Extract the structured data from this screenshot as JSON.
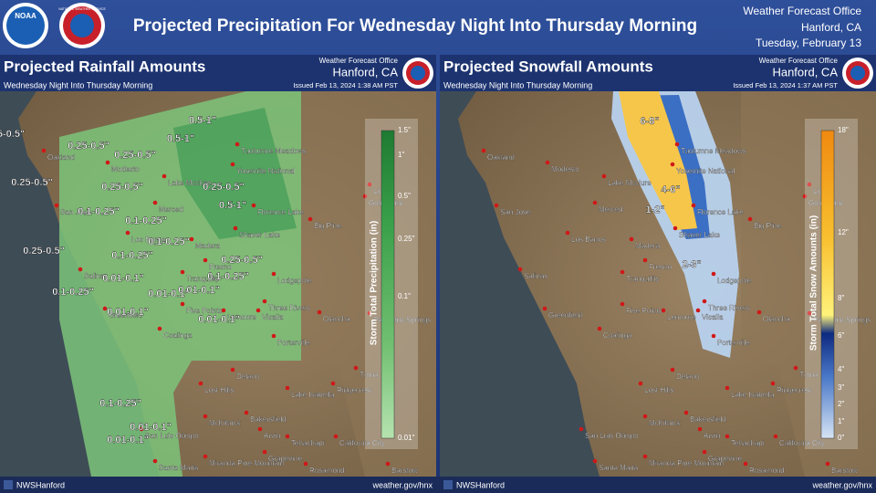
{
  "header": {
    "title": "Projected Precipitation For Wednesday Night Into Thursday Morning",
    "noaa": "NOAA",
    "nws": "NATIONAL WEATHER SERVICE",
    "office": {
      "name": "Weather Forecast Office",
      "location": "Hanford, CA",
      "date": "Tuesday, February 13"
    }
  },
  "panels": [
    {
      "title": "Projected Rainfall Amounts",
      "office": "Weather Forecast Office",
      "location": "Hanford, CA",
      "subtitle": "Wednesday Night Into Thursday Morning",
      "issued": "Issued Feb 13, 2024 1:38 AM PST",
      "legend": {
        "title": "Storm Total Precipitation (in)",
        "labels": [
          "1.5\"",
          "1\"",
          "0.5\"",
          "0.25\"",
          "0.1\"",
          "0.01\""
        ]
      },
      "map_labels": [
        "0.5-1\"",
        "0.5-1\"",
        "0.5-1\"",
        "0.25-0.5\"",
        "0.25-0.5\"",
        "0.25-0.5\"",
        "0.25-0.5\"",
        "0.25-0.5\"",
        "0.25-0.5\"",
        "0.25-0.5\"",
        "5-0.5\"",
        "0.1-0.25\"",
        "0.1-0.25\"",
        "0.1-0.25\"",
        "0.1-0.25\"",
        "0.1-0.25\"",
        "0.1-0.25\"",
        "0.1-0.25\"",
        "0.01-0.1\"",
        "0.01-0.1\"",
        "0.01-0.1\"",
        "0.01-0.1\"",
        "0.01-0.1\"",
        "0.01-0.1\"",
        "0.01-0.1\""
      ]
    },
    {
      "title": "Projected Snowfall Amounts",
      "office": "Weather Forecast Office",
      "location": "Hanford, CA",
      "subtitle": "Wednesday Night Into Thursday Morning",
      "issued": "Issued Feb 13, 2024 1:37 AM PST",
      "legend": {
        "title": "Storm Total Snow Amounts (in)",
        "labels": [
          "18\"",
          "12\"",
          "8\"",
          "6\"",
          "4\"",
          "3\"",
          "2\"",
          "1\"",
          "0\""
        ]
      },
      "map_labels": [
        "6-8\"",
        "4-6\"",
        "1-2\"",
        "2-3\""
      ]
    }
  ],
  "places": [
    "Oakland",
    "San Jose",
    "Salinas",
    "Greenfield",
    "Modesto",
    "Lake Mcclure",
    "Merced",
    "Los Banos",
    "Madera",
    "Fresno",
    "Tranquility",
    "Five Points",
    "Lemoore",
    "Visalia",
    "Coalinga",
    "Three Rivers",
    "Porterville",
    "Lodgepole",
    "Tuolumne Meadows",
    "Yosemite National",
    "Florence Lake",
    "Shaver Lake",
    "Big Pine",
    "Lida",
    "Gold Point",
    "Olancha",
    "Panamint Springs",
    "Delano",
    "Lake Isabella",
    "Ridgecrest",
    "Trona",
    "Lost Hills",
    "McKittrick",
    "Bakersfield",
    "Arvin",
    "Tehachapi",
    "California City",
    "San Luis Obispo",
    "Santa Maria",
    "Miranda Pine Mountain",
    "Grapevine",
    "Rosamond",
    "Barstow"
  ],
  "footer": {
    "social": "NWSHanford",
    "url": "weather.gov/hnx"
  }
}
